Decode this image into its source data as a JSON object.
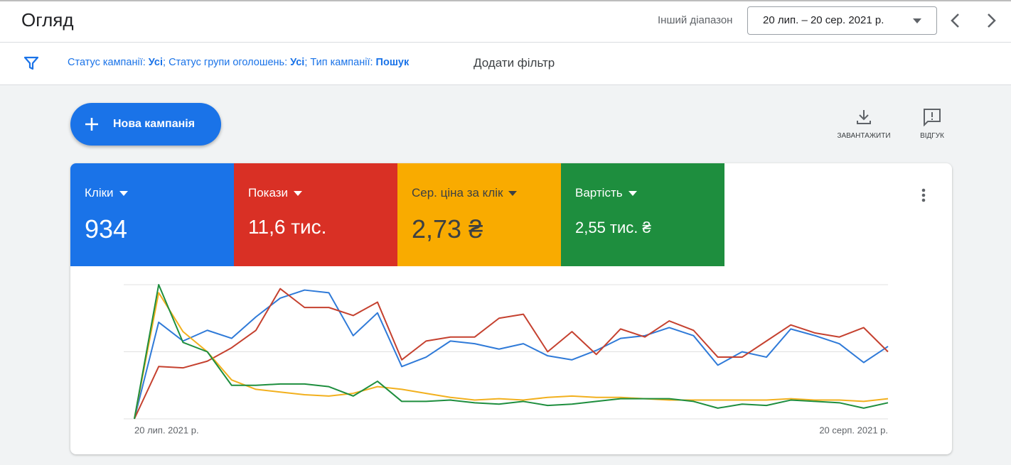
{
  "header": {
    "title": "Огляд",
    "range_label": "Інший діапазон",
    "date_range": "20 лип. – 20 сер. 2021 р."
  },
  "filters": {
    "separator": ";",
    "items": [
      {
        "label": "Статус кампанії:",
        "value": "Усі"
      },
      {
        "label": "Статус групи оголошень:",
        "value": "Усі"
      },
      {
        "label": "Тип кампанії:",
        "value": "Пошук"
      }
    ],
    "add": "Додати фільтр"
  },
  "actions": {
    "new_campaign": "Нова кампанія",
    "download": "ЗАВАНТАЖИТИ",
    "feedback": "ВІДГУК"
  },
  "chart_data": {
    "type": "line",
    "categories": [
      "20 лип. 2021 р.",
      null,
      null,
      null,
      null,
      null,
      null,
      null,
      null,
      null,
      null,
      null,
      null,
      null,
      null,
      null,
      null,
      null,
      null,
      null,
      null,
      null,
      null,
      null,
      null,
      null,
      null,
      null,
      null,
      null,
      null,
      "20 серп. 2021 р."
    ],
    "ylim": [
      0,
      100
    ],
    "yticks": [
      0,
      50,
      100
    ],
    "grid": true,
    "series": [
      {
        "name": "Кліки",
        "total": "934",
        "color": "#2f7ad8",
        "values": [
          0,
          72,
          58,
          66,
          60,
          76,
          90,
          96,
          94,
          62,
          79,
          39,
          46,
          58,
          56,
          52,
          56,
          47,
          44,
          51,
          60,
          62,
          68,
          62,
          40,
          50,
          46,
          67,
          62,
          56,
          42,
          54
        ]
      },
      {
        "name": "Покази",
        "total": "11,6 тис.",
        "color": "#c5412f",
        "values": [
          0,
          39,
          38,
          43,
          53,
          66,
          97,
          83,
          83,
          77,
          87,
          44,
          58,
          61,
          61,
          75,
          78,
          50,
          65,
          48,
          67,
          61,
          73,
          66,
          46,
          46,
          58,
          70,
          64,
          61,
          68,
          50
        ]
      },
      {
        "name": "Сер. ціна за клік",
        "total": "2,73 ₴",
        "color": "#f2b01e",
        "values": [
          0,
          94,
          65,
          50,
          29,
          22,
          20,
          18,
          17,
          19,
          24,
          22,
          19,
          16,
          14,
          15,
          14,
          16,
          17,
          16,
          16,
          15,
          14,
          14,
          14,
          14,
          14,
          15,
          14,
          14,
          13,
          15
        ]
      },
      {
        "name": "Вартість",
        "total": "2,55 тис. ₴",
        "color": "#1e8e3e",
        "values": [
          0,
          100,
          57,
          50,
          25,
          25,
          26,
          26,
          24,
          17,
          28,
          13,
          13,
          14,
          12,
          11,
          13,
          10,
          11,
          13,
          15,
          15,
          15,
          13,
          8,
          11,
          10,
          14,
          13,
          12,
          8,
          12
        ]
      }
    ]
  }
}
